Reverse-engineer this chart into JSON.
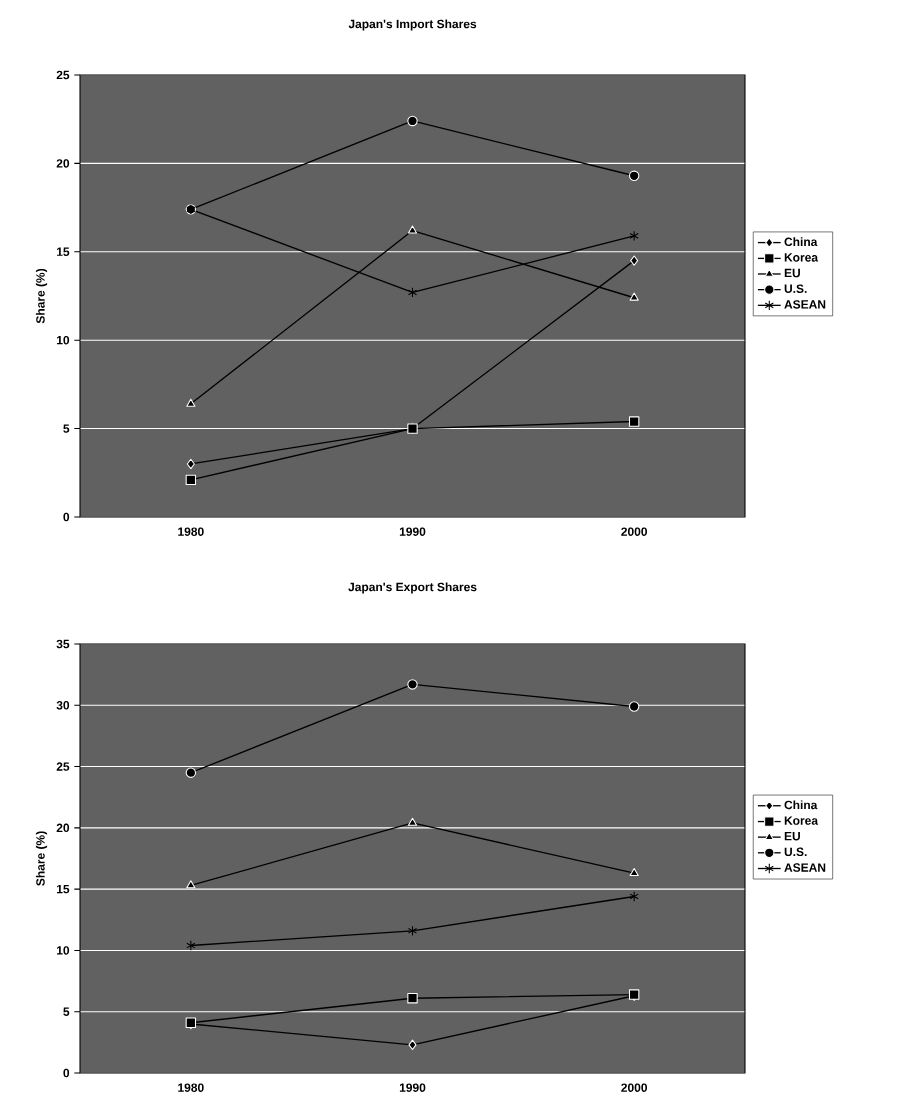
{
  "chart_data": [
    {
      "type": "line",
      "title": "Japan's Import Shares",
      "ylabel": "Share (%)",
      "categories": [
        "1980",
        "1990",
        "2000"
      ],
      "ylim": [
        0,
        25
      ],
      "yticks": [
        0,
        5,
        10,
        15,
        20,
        25
      ],
      "grid": "y",
      "legend": "right",
      "series": [
        {
          "name": "China",
          "color": "#000000",
          "marker": "diamond",
          "values": [
            3,
            5,
            14.5
          ]
        },
        {
          "name": "Korea",
          "color": "#000000",
          "marker": "square",
          "values": [
            2.1,
            5,
            5.4
          ]
        },
        {
          "name": "EU",
          "color": "#000000",
          "marker": "triangle",
          "values": [
            6.4,
            16.2,
            12.4
          ]
        },
        {
          "name": "U.S.",
          "color": "#000000",
          "marker": "circle",
          "values": [
            17.4,
            22.4,
            19.3
          ]
        },
        {
          "name": "ASEAN",
          "color": "#000000",
          "marker": "cross",
          "values": [
            17.4,
            12.7,
            15.9
          ]
        }
      ]
    },
    {
      "type": "line",
      "title": "Japan's Export Shares",
      "ylabel": "Share (%)",
      "categories": [
        "1980",
        "1990",
        "2000"
      ],
      "ylim": [
        0,
        35
      ],
      "yticks": [
        0,
        5,
        10,
        15,
        20,
        25,
        30,
        35
      ],
      "grid": "y",
      "legend": "right",
      "series": [
        {
          "name": "China",
          "color": "#000000",
          "marker": "diamond",
          "values": [
            4,
            2.3,
            6.3
          ]
        },
        {
          "name": "Korea",
          "color": "#000000",
          "marker": "square",
          "values": [
            4.1,
            6.1,
            6.4
          ]
        },
        {
          "name": "EU",
          "color": "#000000",
          "marker": "triangle",
          "values": [
            15.3,
            20.4,
            16.3
          ]
        },
        {
          "name": "U.S.",
          "color": "#000000",
          "marker": "circle",
          "values": [
            24.5,
            31.7,
            29.9
          ]
        },
        {
          "name": "ASEAN",
          "color": "#000000",
          "marker": "cross",
          "values": [
            10.4,
            11.6,
            14.4
          ]
        }
      ]
    }
  ]
}
